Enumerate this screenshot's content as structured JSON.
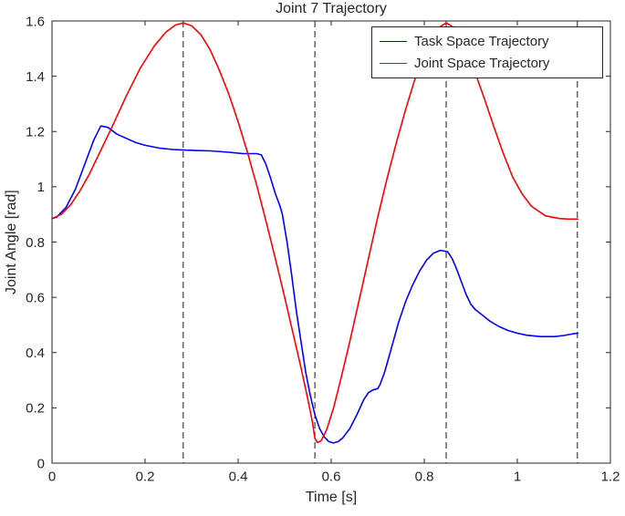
{
  "chart_data": {
    "type": "line",
    "title": "Joint 7 Trajectory",
    "xlabel": "Time [s]",
    "ylabel": "Joint Angle [rad]",
    "xlim": [
      0,
      1.2
    ],
    "ylim": [
      0,
      1.6
    ],
    "xticks": [
      0,
      0.2,
      0.4,
      0.6,
      0.8,
      1,
      1.2
    ],
    "xtick_labels": [
      "0",
      "0.2",
      "0.4",
      "0.6",
      "0.8",
      "1",
      "1.2"
    ],
    "yticks": [
      0,
      0.2,
      0.4,
      0.6,
      0.8,
      1,
      1.2,
      1.4,
      1.6
    ],
    "ytick_labels": [
      "0",
      "0.2",
      "0.4",
      "0.6",
      "0.8",
      "1",
      "1.2",
      "1.4",
      "1.6"
    ],
    "grid": false,
    "axis_color": "#262626",
    "legend_position": "top-right",
    "vlines": {
      "x": [
        0.282,
        0.565,
        0.847,
        1.129
      ],
      "style": "dashed",
      "color": "#1a1a1a"
    },
    "series": [
      {
        "name": "Task Space Trajectory",
        "color": "#0000ff",
        "points": [
          [
            0,
            0.885
          ],
          [
            0.01,
            0.89
          ],
          [
            0.03,
            0.925
          ],
          [
            0.05,
            0.99
          ],
          [
            0.07,
            1.08
          ],
          [
            0.09,
            1.17
          ],
          [
            0.105,
            1.22
          ],
          [
            0.12,
            1.215
          ],
          [
            0.14,
            1.19
          ],
          [
            0.16,
            1.175
          ],
          [
            0.18,
            1.16
          ],
          [
            0.2,
            1.15
          ],
          [
            0.23,
            1.14
          ],
          [
            0.26,
            1.135
          ],
          [
            0.3,
            1.132
          ],
          [
            0.34,
            1.13
          ],
          [
            0.38,
            1.125
          ],
          [
            0.41,
            1.12
          ],
          [
            0.44,
            1.12
          ],
          [
            0.45,
            1.115
          ],
          [
            0.46,
            1.08
          ],
          [
            0.47,
            1.03
          ],
          [
            0.48,
            0.975
          ],
          [
            0.49,
            0.93
          ],
          [
            0.495,
            0.9
          ],
          [
            0.505,
            0.8
          ],
          [
            0.515,
            0.68
          ],
          [
            0.525,
            0.55
          ],
          [
            0.535,
            0.44
          ],
          [
            0.545,
            0.33
          ],
          [
            0.555,
            0.245
          ],
          [
            0.565,
            0.175
          ],
          [
            0.575,
            0.125
          ],
          [
            0.585,
            0.095
          ],
          [
            0.595,
            0.078
          ],
          [
            0.605,
            0.073
          ],
          [
            0.615,
            0.078
          ],
          [
            0.625,
            0.092
          ],
          [
            0.64,
            0.125
          ],
          [
            0.655,
            0.175
          ],
          [
            0.67,
            0.23
          ],
          [
            0.68,
            0.255
          ],
          [
            0.69,
            0.265
          ],
          [
            0.7,
            0.27
          ],
          [
            0.705,
            0.285
          ],
          [
            0.715,
            0.33
          ],
          [
            0.73,
            0.42
          ],
          [
            0.745,
            0.51
          ],
          [
            0.76,
            0.585
          ],
          [
            0.775,
            0.645
          ],
          [
            0.79,
            0.695
          ],
          [
            0.805,
            0.735
          ],
          [
            0.82,
            0.76
          ],
          [
            0.835,
            0.77
          ],
          [
            0.85,
            0.765
          ],
          [
            0.86,
            0.74
          ],
          [
            0.87,
            0.7
          ],
          [
            0.88,
            0.655
          ],
          [
            0.89,
            0.61
          ],
          [
            0.9,
            0.575
          ],
          [
            0.91,
            0.555
          ],
          [
            0.925,
            0.535
          ],
          [
            0.94,
            0.515
          ],
          [
            0.96,
            0.495
          ],
          [
            0.98,
            0.48
          ],
          [
            1,
            0.47
          ],
          [
            1.02,
            0.463
          ],
          [
            1.05,
            0.458
          ],
          [
            1.08,
            0.458
          ],
          [
            1.1,
            0.462
          ],
          [
            1.12,
            0.468
          ],
          [
            1.13,
            0.47
          ]
        ]
      },
      {
        "name": "Joint Space Trajectory",
        "color": "#ff0000",
        "points": [
          [
            0,
            0.885
          ],
          [
            0.02,
            0.9
          ],
          [
            0.04,
            0.935
          ],
          [
            0.06,
            0.985
          ],
          [
            0.08,
            1.045
          ],
          [
            0.1,
            1.115
          ],
          [
            0.13,
            1.22
          ],
          [
            0.16,
            1.33
          ],
          [
            0.19,
            1.43
          ],
          [
            0.22,
            1.51
          ],
          [
            0.245,
            1.56
          ],
          [
            0.265,
            1.585
          ],
          [
            0.282,
            1.593
          ],
          [
            0.3,
            1.583
          ],
          [
            0.32,
            1.55
          ],
          [
            0.34,
            1.495
          ],
          [
            0.36,
            1.42
          ],
          [
            0.38,
            1.335
          ],
          [
            0.4,
            1.235
          ],
          [
            0.42,
            1.125
          ],
          [
            0.44,
            1.005
          ],
          [
            0.46,
            0.875
          ],
          [
            0.48,
            0.74
          ],
          [
            0.5,
            0.6
          ],
          [
            0.52,
            0.455
          ],
          [
            0.535,
            0.345
          ],
          [
            0.55,
            0.23
          ],
          [
            0.56,
            0.145
          ],
          [
            0.565,
            0.09
          ],
          [
            0.57,
            0.075
          ],
          [
            0.578,
            0.08
          ],
          [
            0.59,
            0.12
          ],
          [
            0.605,
            0.2
          ],
          [
            0.62,
            0.3
          ],
          [
            0.64,
            0.44
          ],
          [
            0.66,
            0.59
          ],
          [
            0.68,
            0.74
          ],
          [
            0.7,
            0.89
          ],
          [
            0.72,
            1.03
          ],
          [
            0.74,
            1.16
          ],
          [
            0.76,
            1.28
          ],
          [
            0.78,
            1.39
          ],
          [
            0.8,
            1.48
          ],
          [
            0.815,
            1.535
          ],
          [
            0.83,
            1.575
          ],
          [
            0.847,
            1.593
          ],
          [
            0.865,
            1.575
          ],
          [
            0.88,
            1.535
          ],
          [
            0.895,
            1.48
          ],
          [
            0.91,
            1.41
          ],
          [
            0.93,
            1.315
          ],
          [
            0.95,
            1.215
          ],
          [
            0.97,
            1.12
          ],
          [
            0.99,
            1.035
          ],
          [
            1.01,
            0.975
          ],
          [
            1.03,
            0.93
          ],
          [
            1.06,
            0.895
          ],
          [
            1.09,
            0.885
          ],
          [
            1.11,
            0.883
          ],
          [
            1.13,
            0.883
          ]
        ]
      }
    ]
  }
}
